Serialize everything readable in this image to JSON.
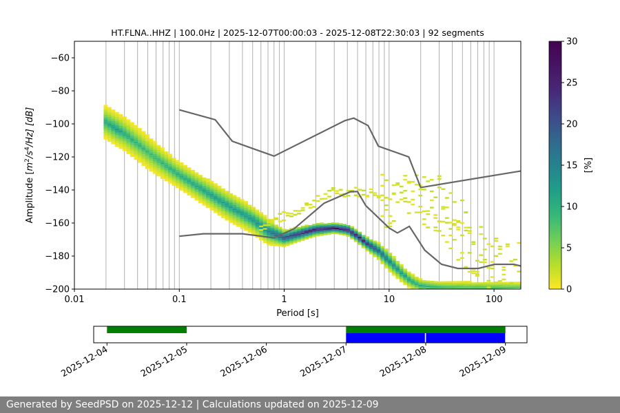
{
  "chart_data": [
    {
      "type": "heatmap",
      "title": "HT.FLNA..HHZ | 100.0Hz | 2025-12-07T00:00:03 - 2025-12-08T22:30:03 | 92 segments",
      "xlabel": "Period [s]",
      "ylabel_parts": {
        "pre": "Amplitude [",
        "m": "m",
        "two": "2",
        "s": "/s",
        "four": "4",
        "hz": "/Hz] [dB]"
      },
      "xscale": "log",
      "xlim": [
        0.01,
        180
      ],
      "ylim": [
        -200,
        -50
      ],
      "xticks": [
        {
          "value": 0.01,
          "label": "0.01"
        },
        {
          "value": 0.1,
          "label": "0.1"
        },
        {
          "value": 1,
          "label": "1"
        },
        {
          "value": 10,
          "label": "10"
        },
        {
          "value": 100,
          "label": "100"
        }
      ],
      "yticks": [
        {
          "value": -60,
          "label": "−60"
        },
        {
          "value": -80,
          "label": "−80"
        },
        {
          "value": -100,
          "label": "−100"
        },
        {
          "value": -120,
          "label": "−120"
        },
        {
          "value": -140,
          "label": "−140"
        },
        {
          "value": -160,
          "label": "−160"
        },
        {
          "value": -180,
          "label": "−180"
        },
        {
          "value": -200,
          "label": "−200"
        }
      ],
      "grid": "vertical log gridlines from 0.02 s",
      "colormap": "viridis_r",
      "colorbar": {
        "label": "[%]",
        "range": [
          0,
          30
        ],
        "ticks": [
          {
            "value": 0,
            "label": "0"
          },
          {
            "value": 5,
            "label": "5"
          },
          {
            "value": 10,
            "label": "10"
          },
          {
            "value": 15,
            "label": "15"
          },
          {
            "value": 20,
            "label": "20"
          },
          {
            "value": 25,
            "label": "25"
          },
          {
            "value": 30,
            "label": "30"
          }
        ]
      },
      "psd_mode": [
        {
          "period": 0.02,
          "db": -99,
          "pct": 12
        },
        {
          "period": 0.025,
          "db": -103,
          "pct": 14
        },
        {
          "period": 0.03,
          "db": -106,
          "pct": 12
        },
        {
          "period": 0.04,
          "db": -112,
          "pct": 11
        },
        {
          "period": 0.05,
          "db": -117,
          "pct": 10
        },
        {
          "period": 0.07,
          "db": -124,
          "pct": 11
        },
        {
          "period": 0.1,
          "db": -131,
          "pct": 12
        },
        {
          "period": 0.15,
          "db": -138,
          "pct": 13
        },
        {
          "period": 0.2,
          "db": -143,
          "pct": 14
        },
        {
          "period": 0.3,
          "db": -150,
          "pct": 14
        },
        {
          "period": 0.5,
          "db": -158,
          "pct": 15
        },
        {
          "period": 0.7,
          "db": -165,
          "pct": 18
        },
        {
          "period": 1,
          "db": -169,
          "pct": 24
        },
        {
          "period": 1.5,
          "db": -166,
          "pct": 28
        },
        {
          "period": 2,
          "db": -164,
          "pct": 30
        },
        {
          "period": 3,
          "db": -163,
          "pct": 30
        },
        {
          "period": 4,
          "db": -164,
          "pct": 30
        },
        {
          "period": 5,
          "db": -168,
          "pct": 30
        },
        {
          "period": 6,
          "db": -172,
          "pct": 28
        },
        {
          "period": 8,
          "db": -177,
          "pct": 22
        },
        {
          "period": 10,
          "db": -183,
          "pct": 18
        },
        {
          "period": 13,
          "db": -190,
          "pct": 15
        },
        {
          "period": 16,
          "db": -195,
          "pct": 13
        },
        {
          "period": 20,
          "db": -198,
          "pct": 12
        },
        {
          "period": 30,
          "db": -199,
          "pct": 10
        },
        {
          "period": 50,
          "db": -199,
          "pct": 9
        },
        {
          "period": 100,
          "db": -199,
          "pct": 9
        },
        {
          "period": 180,
          "db": -199,
          "pct": 8
        }
      ],
      "psd_spread_db": [
        {
          "period": 0.02,
          "spread": 10
        },
        {
          "period": 0.05,
          "spread": 10
        },
        {
          "period": 0.1,
          "spread": 8
        },
        {
          "period": 0.3,
          "spread": 9
        },
        {
          "period": 0.7,
          "spread": 8
        },
        {
          "period": 1,
          "spread": 5
        },
        {
          "period": 3,
          "spread": 3
        },
        {
          "period": 6,
          "spread": 4
        },
        {
          "period": 10,
          "spread": 6
        },
        {
          "period": 20,
          "spread": 4
        },
        {
          "period": 180,
          "spread": 3
        }
      ],
      "secondary_branch": [
        {
          "period": 0.6,
          "db": -162
        },
        {
          "period": 1,
          "db": -156
        },
        {
          "period": 2,
          "db": -147
        },
        {
          "period": 3,
          "db": -141
        },
        {
          "period": 5,
          "db": -141
        },
        {
          "period": 8,
          "db": -142
        },
        {
          "period": 12,
          "db": -144
        },
        {
          "period": 20,
          "db": -140
        },
        {
          "period": 30,
          "db": -150
        },
        {
          "period": 50,
          "db": -165
        },
        {
          "period": 80,
          "db": -180
        },
        {
          "period": 120,
          "db": -192
        }
      ],
      "series": [
        {
          "name": "",
          "color": "#666666",
          "points": [
            [
              0.1,
              -91.5
            ],
            [
              0.22,
              -97.5
            ],
            [
              0.32,
              -110.5
            ],
            [
              0.8,
              -119.5
            ],
            [
              3.8,
              -98
            ],
            [
              4.6,
              -96.5
            ],
            [
              6.3,
              -101
            ],
            [
              7.9,
              -113.5
            ],
            [
              15.4,
              -120
            ],
            [
              20,
              -138.5
            ],
            [
              180,
              -128.5
            ]
          ]
        },
        {
          "name": "",
          "color": "#666666",
          "points": [
            [
              0.1,
              -168
            ],
            [
              0.17,
              -166.5
            ],
            [
              0.4,
              -166.5
            ],
            [
              0.8,
              -169
            ],
            [
              1.24,
              -163.5
            ],
            [
              2.4,
              -148
            ],
            [
              4.3,
              -141
            ],
            [
              5.0,
              -141
            ],
            [
              6.0,
              -149.5
            ],
            [
              10,
              -163
            ],
            [
              12,
              -166
            ],
            [
              15.6,
              -162
            ],
            [
              21.9,
              -176.5
            ],
            [
              31.6,
              -185
            ],
            [
              45.2,
              -187.5
            ],
            [
              70.8,
              -187.5
            ],
            [
              101,
              -185
            ],
            [
              154,
              -185
            ],
            [
              180,
              -186
            ]
          ]
        }
      ]
    },
    {
      "type": "timeline",
      "date_ticks": [
        "2025-12-04",
        "2025-12-05",
        "2025-12-06",
        "2025-12-07",
        "2025-12-08",
        "2025-12-09"
      ],
      "range": [
        "2025-12-03T20:00",
        "2025-12-09T06:30"
      ],
      "data_available": [
        {
          "start": "2025-12-04T00:00",
          "end": "2025-12-05T00:00",
          "color": "#008000"
        },
        {
          "start": "2025-12-07T00:00",
          "end": "2025-12-09T00:00",
          "color": "#008000"
        }
      ],
      "psd_used": [
        {
          "start": "2025-12-07T00:00",
          "end": "2025-12-07T23:45",
          "color": "#0000ff"
        },
        {
          "start": "2025-12-08T00:05",
          "end": "2025-12-08T23:55",
          "color": "#0000ff"
        }
      ]
    }
  ],
  "footer": "Generated by SeedPSD on 2025-12-12 | Calculations updated on 2025-12-09"
}
